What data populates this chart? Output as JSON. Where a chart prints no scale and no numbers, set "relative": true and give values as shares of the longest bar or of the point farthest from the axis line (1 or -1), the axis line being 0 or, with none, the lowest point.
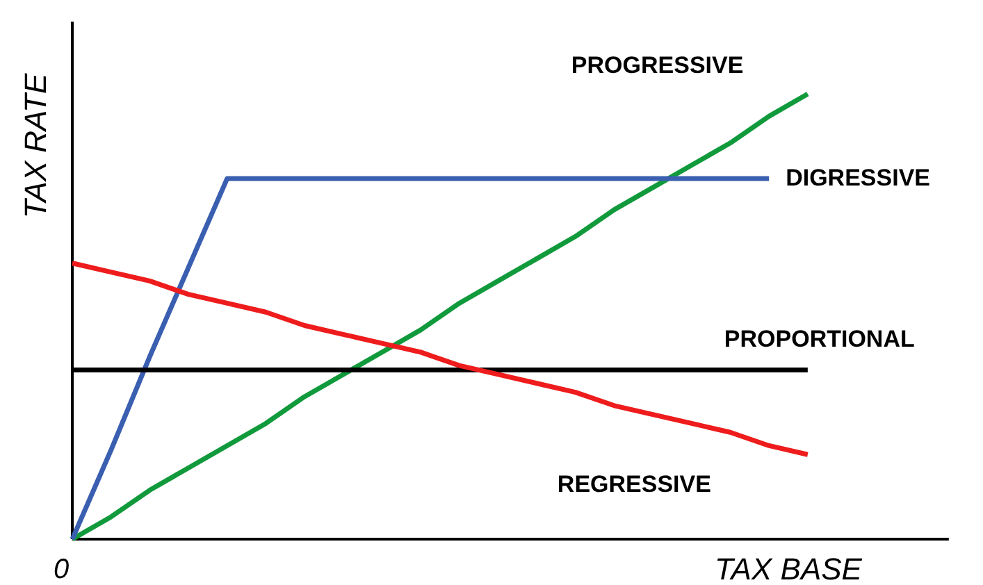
{
  "chart_data": {
    "type": "line",
    "relative": true,
    "xlabel": "TAX BASE",
    "ylabel": "TAX RATE",
    "annotations": [
      "0"
    ],
    "legend": false,
    "marker": "none",
    "line_style": "solid",
    "categories": [
      null,
      null,
      null,
      null,
      null,
      null,
      null,
      null,
      null,
      null,
      null,
      null,
      null,
      null,
      null,
      null,
      null,
      null,
      null,
      null
    ],
    "series": [
      {
        "name": "PROGRESSIVE",
        "color": "#119a3c",
        "values": [
          0,
          0.05,
          0.11,
          0.16,
          0.21,
          0.26,
          0.32,
          0.37,
          0.42,
          0.47,
          0.53,
          0.58,
          0.63,
          0.68,
          0.74,
          0.79,
          0.84,
          0.89,
          0.95,
          1
        ]
      },
      {
        "name": "DIGRESSIVE",
        "color": "#3a5fb0",
        "values": [
          0,
          0.2,
          0.41,
          0.61,
          0.81,
          0.81,
          0.81,
          0.81,
          0.81,
          0.81,
          0.81,
          0.81,
          0.81,
          0.81,
          0.81,
          0.81,
          0.81,
          0.81,
          0.81,
          null
        ]
      },
      {
        "name": "PROPORTIONAL",
        "color": "#000000",
        "values": [
          0.38,
          0.38,
          0.38,
          0.38,
          0.38,
          0.38,
          0.38,
          0.38,
          0.38,
          0.38,
          0.38,
          0.38,
          0.38,
          0.38,
          0.38,
          0.38,
          0.38,
          0.38,
          0.38,
          0.38
        ]
      },
      {
        "name": "REGRESSIVE",
        "color": "#ee1c1c",
        "values": [
          0.62,
          0.6,
          0.58,
          0.55,
          0.53,
          0.51,
          0.48,
          0.46,
          0.44,
          0.42,
          0.39,
          0.37,
          0.35,
          0.33,
          0.3,
          0.28,
          0.26,
          0.24,
          0.21,
          0.19
        ]
      }
    ]
  }
}
